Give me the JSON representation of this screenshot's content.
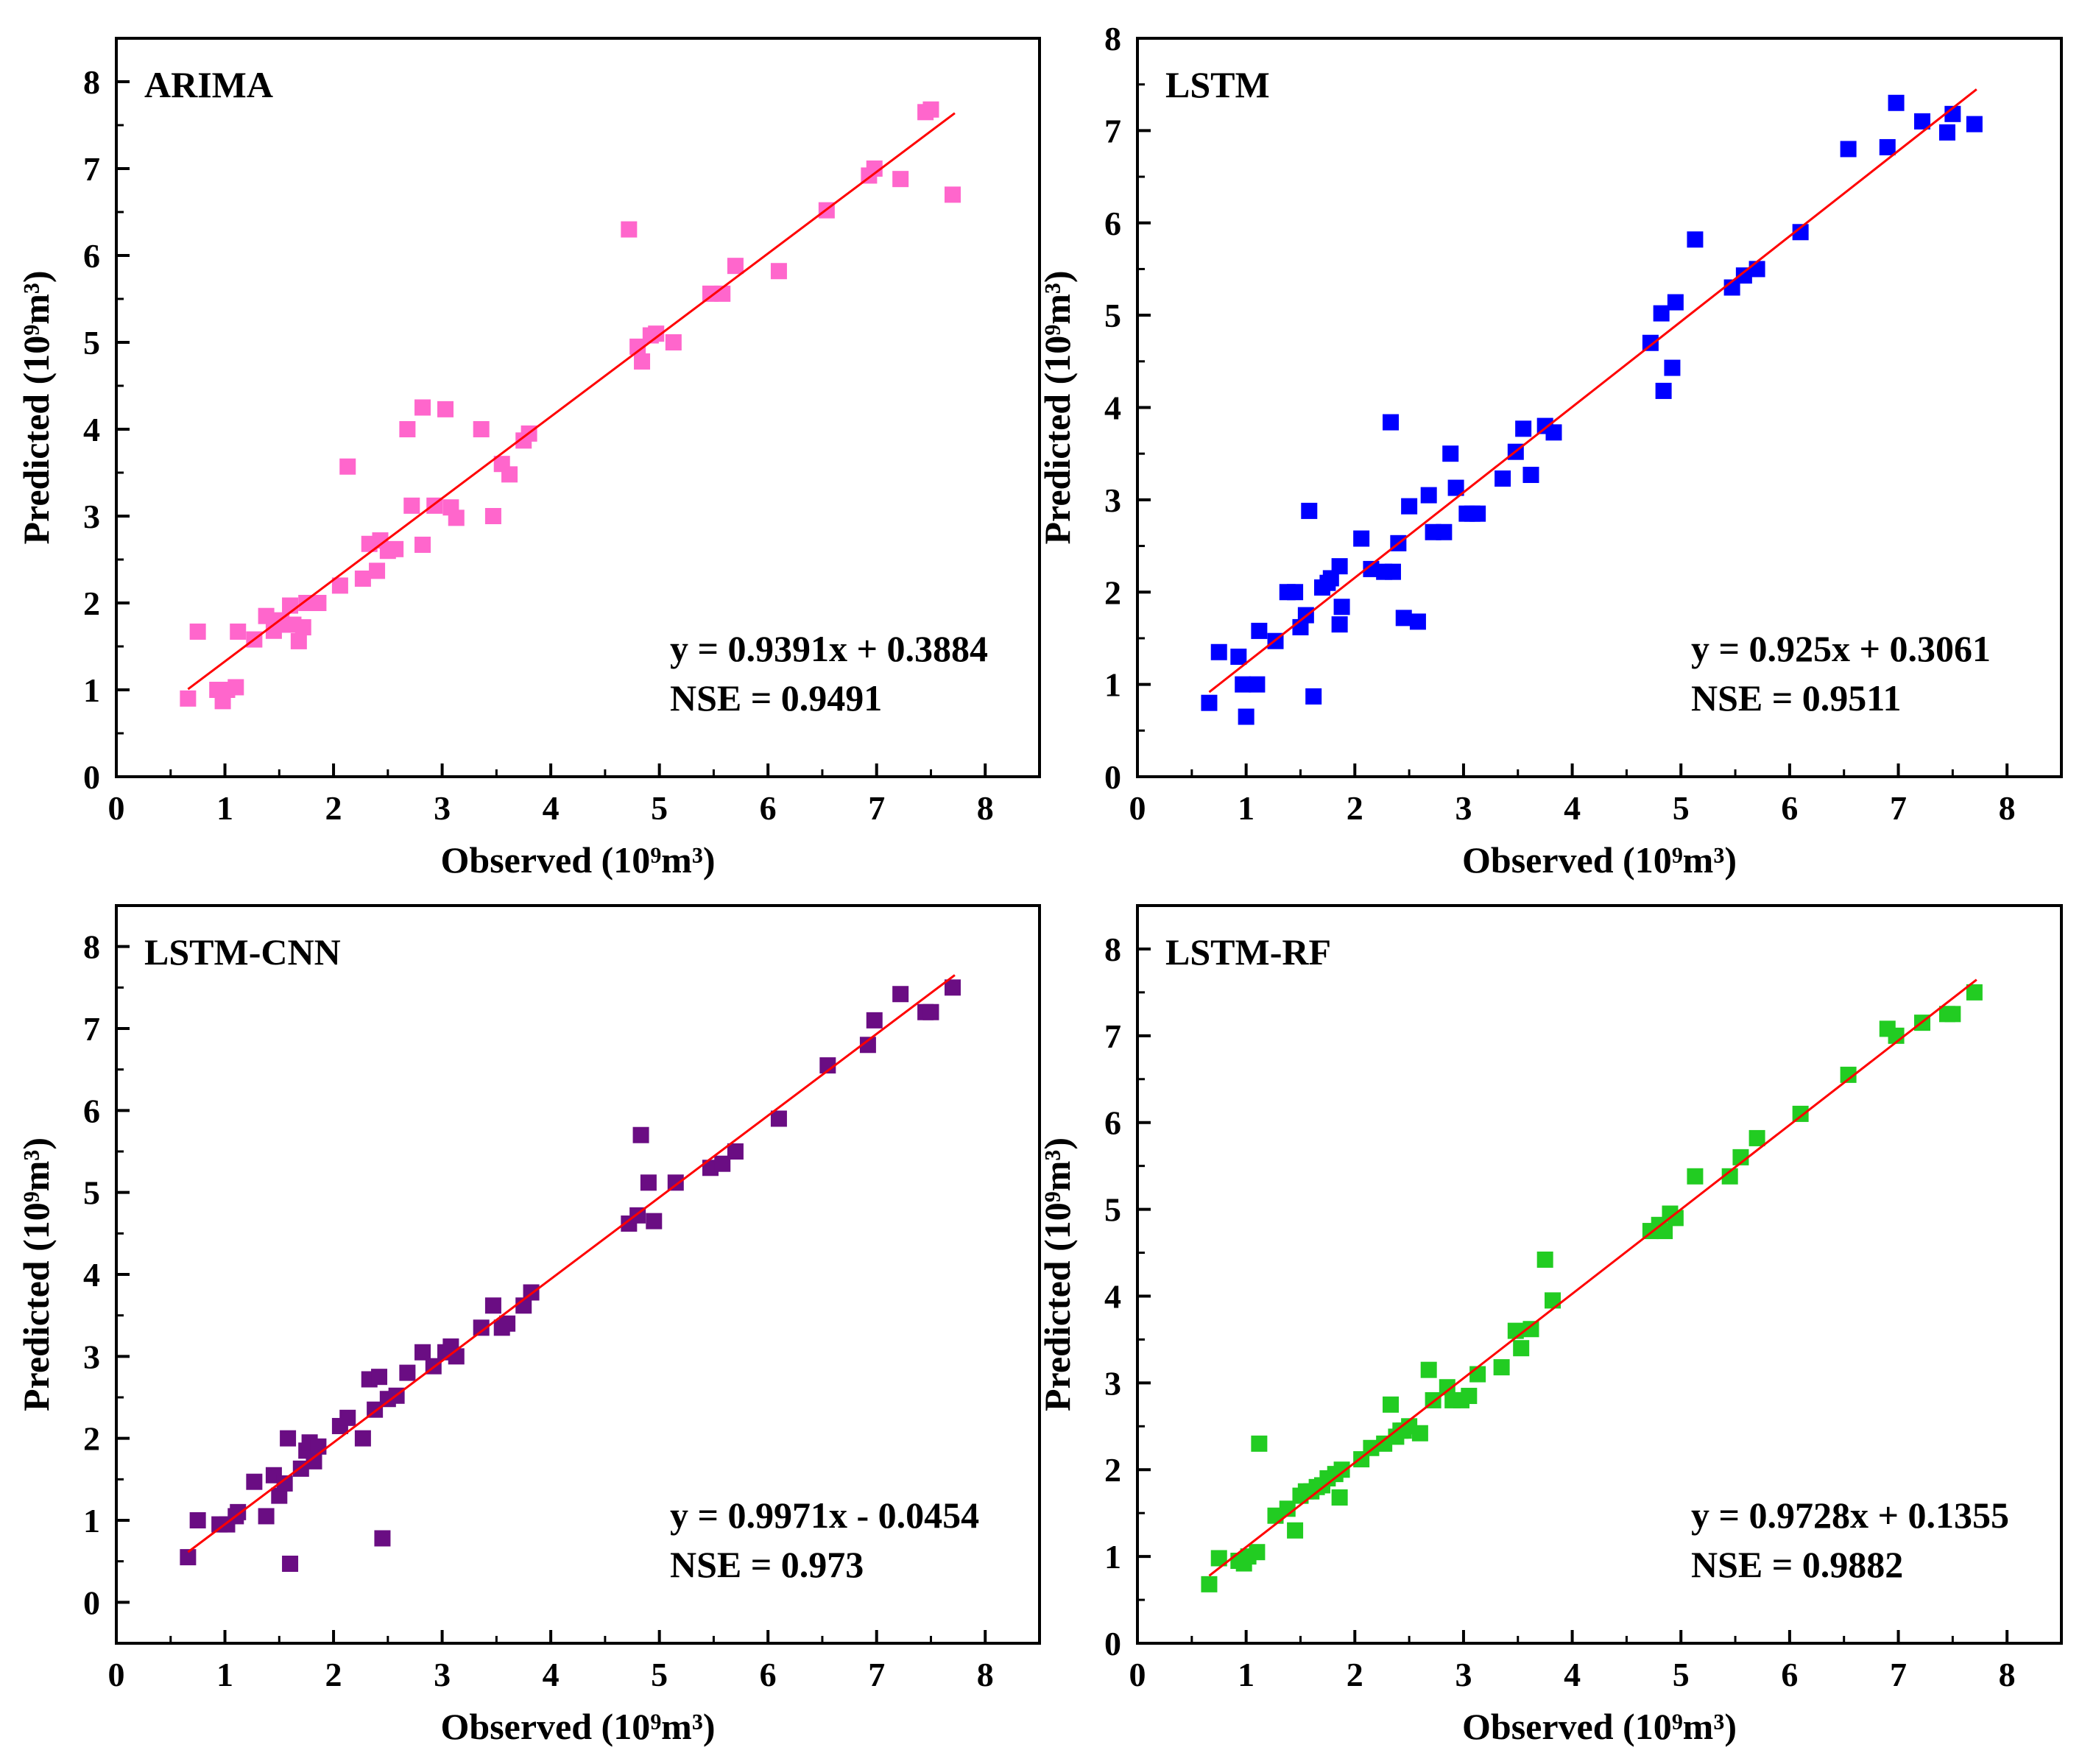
{
  "chart_data": [
    {
      "type": "scatter",
      "title": "ARIMA",
      "xlabel": "Observed (10⁹m³)",
      "ylabel": "Predicted (10⁹m³)",
      "xlim": [
        0,
        8.5
      ],
      "ylim": [
        0,
        8.5
      ],
      "xticks": [
        0,
        1,
        2,
        3,
        4,
        5,
        6,
        7,
        8
      ],
      "yticks": [
        0,
        1,
        2,
        3,
        4,
        5,
        6,
        7,
        8
      ],
      "marker_color": "#ff66cc",
      "fit_line_color": "#ff0000",
      "fit": {
        "slope": 0.9391,
        "intercept": 0.3884,
        "x_range": [
          0.66,
          7.72
        ]
      },
      "equation": "y = 0.9391x + 0.3884",
      "nse": "NSE = 0.9491",
      "points": [
        [
          0.66,
          0.9
        ],
        [
          0.75,
          1.67
        ],
        [
          0.93,
          1.0
        ],
        [
          0.98,
          0.87
        ],
        [
          1.02,
          1.0
        ],
        [
          1.1,
          1.03
        ],
        [
          1.12,
          1.67
        ],
        [
          1.27,
          1.58
        ],
        [
          1.38,
          1.85
        ],
        [
          1.45,
          1.68
        ],
        [
          1.52,
          1.8
        ],
        [
          1.55,
          1.75
        ],
        [
          1.6,
          1.97
        ],
        [
          1.63,
          1.75
        ],
        [
          1.68,
          1.56
        ],
        [
          1.72,
          1.72
        ],
        [
          1.75,
          2.0
        ],
        [
          1.86,
          2.0
        ],
        [
          2.06,
          2.2
        ],
        [
          2.13,
          3.57
        ],
        [
          2.27,
          2.28
        ],
        [
          2.33,
          2.68
        ],
        [
          2.4,
          2.37
        ],
        [
          2.43,
          2.72
        ],
        [
          2.5,
          2.6
        ],
        [
          2.57,
          2.62
        ],
        [
          2.68,
          4.0
        ],
        [
          2.72,
          3.12
        ],
        [
          2.82,
          4.25
        ],
        [
          2.82,
          2.67
        ],
        [
          2.93,
          3.12
        ],
        [
          3.03,
          4.23
        ],
        [
          3.08,
          3.1
        ],
        [
          3.13,
          2.98
        ],
        [
          3.36,
          4.0
        ],
        [
          3.47,
          3.0
        ],
        [
          3.55,
          3.6
        ],
        [
          3.62,
          3.48
        ],
        [
          3.75,
          3.87
        ],
        [
          3.8,
          3.95
        ],
        [
          4.72,
          6.3
        ],
        [
          4.8,
          4.95
        ],
        [
          4.84,
          4.78
        ],
        [
          4.92,
          5.08
        ],
        [
          4.97,
          5.1
        ],
        [
          5.13,
          5.0
        ],
        [
          5.47,
          5.56
        ],
        [
          5.58,
          5.56
        ],
        [
          5.7,
          5.88
        ],
        [
          6.1,
          5.82
        ],
        [
          6.54,
          6.52
        ],
        [
          6.93,
          6.92
        ],
        [
          6.98,
          7.0
        ],
        [
          7.22,
          6.88
        ],
        [
          7.45,
          7.65
        ],
        [
          7.5,
          7.68
        ],
        [
          7.7,
          6.7
        ]
      ]
    },
    {
      "type": "scatter",
      "title": "LSTM",
      "xlabel": "Observed (10⁹m³)",
      "ylabel": "Predicted (10⁹m³)",
      "xlim": [
        0,
        8.5
      ],
      "ylim": [
        0,
        8
      ],
      "xticks": [
        0,
        1,
        2,
        3,
        4,
        5,
        6,
        7,
        8
      ],
      "yticks": [
        0,
        1,
        2,
        3,
        4,
        5,
        6,
        7,
        8
      ],
      "marker_color": "#0000ff",
      "fit_line_color": "#ff0000",
      "fit": {
        "slope": 0.925,
        "intercept": 0.3061,
        "x_range": [
          0.66,
          7.72
        ]
      },
      "equation": "y = 0.925x + 0.3061",
      "nse": "NSE = 0.9511",
      "points": [
        [
          0.66,
          0.8
        ],
        [
          0.75,
          1.35
        ],
        [
          0.93,
          1.3
        ],
        [
          0.97,
          1.0
        ],
        [
          1.0,
          0.65
        ],
        [
          1.1,
          1.0
        ],
        [
          1.12,
          1.58
        ],
        [
          1.27,
          1.47
        ],
        [
          1.38,
          2.0
        ],
        [
          1.45,
          2.0
        ],
        [
          1.5,
          1.62
        ],
        [
          1.55,
          1.75
        ],
        [
          1.58,
          2.88
        ],
        [
          1.62,
          0.87
        ],
        [
          1.7,
          2.05
        ],
        [
          1.75,
          2.1
        ],
        [
          1.78,
          2.15
        ],
        [
          1.86,
          2.28
        ],
        [
          1.86,
          1.65
        ],
        [
          1.88,
          1.84
        ],
        [
          2.06,
          2.58
        ],
        [
          2.15,
          2.25
        ],
        [
          2.27,
          2.22
        ],
        [
          2.33,
          3.84
        ],
        [
          2.35,
          2.22
        ],
        [
          2.4,
          2.53
        ],
        [
          2.45,
          1.72
        ],
        [
          2.5,
          2.93
        ],
        [
          2.58,
          1.68
        ],
        [
          2.68,
          3.05
        ],
        [
          2.72,
          2.65
        ],
        [
          2.82,
          2.65
        ],
        [
          2.88,
          3.5
        ],
        [
          2.93,
          3.13
        ],
        [
          3.03,
          2.85
        ],
        [
          3.08,
          2.85
        ],
        [
          3.13,
          2.85
        ],
        [
          3.36,
          3.23
        ],
        [
          3.48,
          3.52
        ],
        [
          3.55,
          3.77
        ],
        [
          3.62,
          3.27
        ],
        [
          3.75,
          3.8
        ],
        [
          3.83,
          3.73
        ],
        [
          4.72,
          4.7
        ],
        [
          4.82,
          5.02
        ],
        [
          4.84,
          4.18
        ],
        [
          4.92,
          4.43
        ],
        [
          4.95,
          5.14
        ],
        [
          5.13,
          5.82
        ],
        [
          5.47,
          5.3
        ],
        [
          5.58,
          5.43
        ],
        [
          5.7,
          5.5
        ],
        [
          6.1,
          5.9
        ],
        [
          6.54,
          6.8
        ],
        [
          6.9,
          6.82
        ],
        [
          6.98,
          7.3
        ],
        [
          7.22,
          7.1
        ],
        [
          7.45,
          6.98
        ],
        [
          7.5,
          7.18
        ],
        [
          7.7,
          7.07
        ]
      ]
    },
    {
      "type": "scatter",
      "title": "LSTM-CNN",
      "xlabel": "Observed (10⁹m³)",
      "ylabel": "Predicted (10⁹m³)",
      "xlim": [
        0,
        8.5
      ],
      "ylim": [
        -0.5,
        8.5
      ],
      "xticks": [
        0,
        1,
        2,
        3,
        4,
        5,
        6,
        7,
        8
      ],
      "yticks": [
        0,
        1,
        2,
        3,
        4,
        5,
        6,
        7,
        8
      ],
      "marker_color": "#6a0d83",
      "fit_line_color": "#ff0000",
      "fit": {
        "slope": 0.9971,
        "intercept": -0.0454,
        "x_range": [
          0.66,
          7.72
        ]
      },
      "equation": "y = 0.9971x - 0.0454",
      "nse": "NSE = 0.973",
      "points": [
        [
          0.66,
          0.55
        ],
        [
          0.75,
          1.0
        ],
        [
          0.95,
          0.95
        ],
        [
          1.02,
          0.95
        ],
        [
          1.1,
          1.05
        ],
        [
          1.12,
          1.1
        ],
        [
          1.27,
          1.47
        ],
        [
          1.38,
          1.05
        ],
        [
          1.45,
          1.55
        ],
        [
          1.5,
          1.3
        ],
        [
          1.55,
          1.45
        ],
        [
          1.58,
          2.0
        ],
        [
          1.6,
          0.47
        ],
        [
          1.7,
          1.63
        ],
        [
          1.75,
          1.85
        ],
        [
          1.78,
          1.95
        ],
        [
          1.82,
          1.72
        ],
        [
          1.86,
          1.9
        ],
        [
          2.06,
          2.15
        ],
        [
          2.13,
          2.25
        ],
        [
          2.27,
          2.0
        ],
        [
          2.33,
          2.72
        ],
        [
          2.38,
          2.35
        ],
        [
          2.42,
          2.75
        ],
        [
          2.45,
          0.78
        ],
        [
          2.5,
          2.48
        ],
        [
          2.58,
          2.52
        ],
        [
          2.68,
          2.8
        ],
        [
          2.82,
          3.05
        ],
        [
          2.92,
          2.88
        ],
        [
          3.03,
          3.05
        ],
        [
          3.08,
          3.12
        ],
        [
          3.13,
          3.0
        ],
        [
          3.36,
          3.35
        ],
        [
          3.47,
          3.62
        ],
        [
          3.55,
          3.35
        ],
        [
          3.6,
          3.4
        ],
        [
          3.75,
          3.62
        ],
        [
          3.82,
          3.78
        ],
        [
          4.72,
          4.62
        ],
        [
          4.8,
          4.72
        ],
        [
          4.83,
          5.7
        ],
        [
          4.9,
          5.12
        ],
        [
          4.95,
          4.65
        ],
        [
          5.15,
          5.12
        ],
        [
          5.47,
          5.3
        ],
        [
          5.58,
          5.35
        ],
        [
          5.7,
          5.5
        ],
        [
          6.1,
          5.9
        ],
        [
          6.55,
          6.55
        ],
        [
          6.92,
          6.8
        ],
        [
          6.98,
          7.1
        ],
        [
          7.22,
          7.42
        ],
        [
          7.45,
          7.2
        ],
        [
          7.5,
          7.2
        ],
        [
          7.7,
          7.5
        ]
      ]
    },
    {
      "type": "scatter",
      "title": "LSTM-RF",
      "xlabel": "Observed (10⁹m³)",
      "ylabel": "Predicted (10⁹m³)",
      "xlim": [
        0,
        8.5
      ],
      "ylim": [
        0,
        8.5
      ],
      "xticks": [
        0,
        1,
        2,
        3,
        4,
        5,
        6,
        7,
        8
      ],
      "yticks": [
        0,
        1,
        2,
        3,
        4,
        5,
        6,
        7,
        8
      ],
      "marker_color": "#22cc22",
      "fit_line_color": "#ff0000",
      "fit": {
        "slope": 0.9728,
        "intercept": 0.1355,
        "x_range": [
          0.66,
          7.72
        ]
      },
      "equation": "y = 0.9728x + 0.1355",
      "nse": "NSE = 0.9882",
      "points": [
        [
          0.66,
          0.68
        ],
        [
          0.75,
          0.98
        ],
        [
          0.93,
          0.95
        ],
        [
          0.98,
          0.92
        ],
        [
          1.02,
          1.0
        ],
        [
          1.1,
          1.05
        ],
        [
          1.12,
          2.3
        ],
        [
          1.27,
          1.47
        ],
        [
          1.38,
          1.55
        ],
        [
          1.45,
          1.3
        ],
        [
          1.5,
          1.7
        ],
        [
          1.55,
          1.75
        ],
        [
          1.6,
          1.75
        ],
        [
          1.65,
          1.8
        ],
        [
          1.7,
          1.82
        ],
        [
          1.75,
          1.9
        ],
        [
          1.82,
          1.95
        ],
        [
          1.86,
          1.68
        ],
        [
          1.88,
          2.0
        ],
        [
          2.06,
          2.12
        ],
        [
          2.15,
          2.25
        ],
        [
          2.27,
          2.3
        ],
        [
          2.33,
          2.75
        ],
        [
          2.38,
          2.38
        ],
        [
          2.42,
          2.45
        ],
        [
          2.45,
          2.45
        ],
        [
          2.5,
          2.5
        ],
        [
          2.6,
          2.42
        ],
        [
          2.68,
          3.15
        ],
        [
          2.72,
          2.8
        ],
        [
          2.85,
          2.95
        ],
        [
          2.9,
          2.8
        ],
        [
          2.98,
          2.8
        ],
        [
          3.05,
          2.85
        ],
        [
          3.13,
          3.1
        ],
        [
          3.35,
          3.18
        ],
        [
          3.48,
          3.6
        ],
        [
          3.53,
          3.4
        ],
        [
          3.62,
          3.62
        ],
        [
          3.75,
          4.42
        ],
        [
          3.82,
          3.95
        ],
        [
          4.72,
          4.75
        ],
        [
          4.8,
          4.82
        ],
        [
          4.85,
          4.75
        ],
        [
          4.9,
          4.95
        ],
        [
          4.95,
          4.9
        ],
        [
          5.13,
          5.38
        ],
        [
          5.45,
          5.38
        ],
        [
          5.55,
          5.6
        ],
        [
          5.7,
          5.82
        ],
        [
          6.1,
          6.1
        ],
        [
          6.54,
          6.55
        ],
        [
          6.9,
          7.08
        ],
        [
          6.98,
          7.0
        ],
        [
          7.22,
          7.15
        ],
        [
          7.45,
          7.25
        ],
        [
          7.5,
          7.25
        ],
        [
          7.7,
          7.5
        ]
      ]
    }
  ]
}
